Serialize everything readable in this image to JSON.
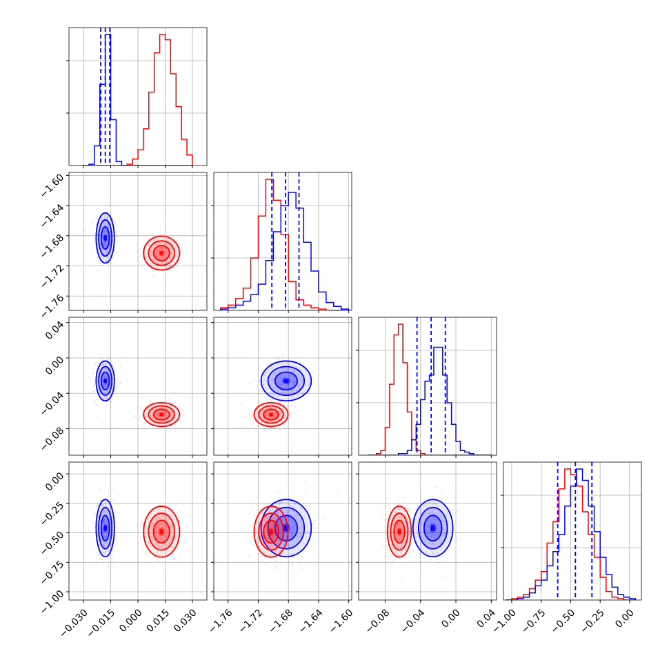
{
  "colors": {
    "blue": "#0000ff",
    "red": "#ff0000",
    "grid": "#b0b0b0",
    "axes": "#000000"
  },
  "chart_data": {
    "type": "corner",
    "grid": true,
    "quantile_lines": {
      "series": "blue",
      "style": "dashed"
    },
    "series": [
      {
        "color": "blue",
        "mean": [
          -0.018,
          -1.683,
          -0.026,
          -0.46
        ],
        "std": [
          0.0028,
          0.0185,
          0.0125,
          0.135
        ]
      },
      {
        "color": "red",
        "mean": [
          0.013,
          -1.703,
          -0.064,
          -0.49
        ],
        "std": [
          0.0055,
          0.0125,
          0.0075,
          0.12
        ]
      }
    ],
    "quantiles_blue": [
      [
        -0.0205,
        -0.018,
        -0.0155
      ],
      [
        -1.702,
        -1.684,
        -1.666
      ],
      [
        -0.044,
        -0.028,
        -0.012
      ],
      [
        -0.61,
        -0.46,
        -0.32
      ]
    ],
    "params": [
      {
        "range": [
          -0.038,
          0.038
        ],
        "ticks": [
          -0.03,
          -0.015,
          0.0,
          0.015,
          0.03
        ],
        "tick_labels": [
          "−0.030",
          "−0.015",
          "0.000",
          "0.015",
          "0.030"
        ]
      },
      {
        "range": [
          -1.779,
          -1.596
        ],
        "ticks": [
          -1.76,
          -1.72,
          -1.68,
          -1.64,
          -1.6
        ],
        "tick_labels": [
          "−1.76",
          "−1.72",
          "−1.68",
          "−1.64",
          "−1.60"
        ]
      },
      {
        "range": [
          -0.11,
          0.046
        ],
        "ticks": [
          -0.08,
          -0.04,
          0.0,
          0.04
        ],
        "tick_labels": [
          "−0.08",
          "−0.04",
          "0.00",
          "0.04"
        ]
      },
      {
        "range": [
          -1.07,
          0.1
        ],
        "ticks": [
          -1.0,
          -0.75,
          -0.5,
          -0.25,
          0.0
        ],
        "tick_labels": [
          "−1.00",
          "−0.75",
          "−0.50",
          "−0.25",
          "0.00"
        ]
      }
    ],
    "panels_1d": [
      {
        "bins": [
          -0.03,
          -0.027,
          -0.024,
          -0.021,
          -0.018,
          -0.015,
          -0.012,
          -0.009,
          -0.006,
          -0.003,
          0.0,
          0.003,
          0.006,
          0.009,
          0.012,
          0.015,
          0.018,
          0.021,
          0.024,
          0.027,
          0.03
        ],
        "blue": [
          0,
          1,
          15,
          62,
          100,
          35,
          3,
          0,
          0,
          0,
          0,
          0,
          0,
          0,
          0,
          0,
          0,
          0,
          0,
          0
        ],
        "red": [
          0,
          0,
          0,
          0,
          0,
          0,
          0,
          0,
          1,
          5,
          12,
          28,
          56,
          86,
          100,
          96,
          70,
          45,
          20,
          8
        ]
      },
      {
        "bins": [
          -1.77,
          -1.76,
          -1.75,
          -1.74,
          -1.73,
          -1.72,
          -1.71,
          -1.7,
          -1.69,
          -1.68,
          -1.67,
          -1.66,
          -1.65,
          -1.64,
          -1.63,
          -1.62,
          -1.61,
          -1.6
        ],
        "blue": [
          1,
          2,
          4,
          7,
          12,
          20,
          38,
          60,
          80,
          90,
          78,
          52,
          30,
          14,
          6,
          3,
          1
        ],
        "red": [
          2,
          4,
          9,
          17,
          40,
          72,
          100,
          84,
          58,
          22,
          8,
          4,
          2,
          1,
          0,
          0,
          0
        ]
      },
      {
        "bins": [
          -0.1,
          -0.095,
          -0.09,
          -0.085,
          -0.08,
          -0.075,
          -0.07,
          -0.065,
          -0.06,
          -0.055,
          -0.05,
          -0.045,
          -0.04,
          -0.035,
          -0.03,
          -0.025,
          -0.02,
          -0.015,
          -0.01,
          -0.005,
          0.0,
          0.005,
          0.01,
          0.015,
          0.02,
          0.025,
          0.03,
          0.035,
          0.04
        ],
        "blue": [
          0,
          0,
          0,
          0,
          0,
          0,
          0,
          1,
          1,
          3,
          10,
          20,
          36,
          48,
          52,
          70,
          70,
          52,
          34,
          20,
          9,
          3,
          2,
          1,
          0,
          0,
          0,
          0
        ],
        "red": [
          0,
          0,
          1,
          3,
          18,
          46,
          78,
          85,
          60,
          28,
          10,
          3,
          1,
          0,
          0,
          0,
          0,
          0,
          0,
          0,
          0,
          0,
          0,
          0,
          0,
          0,
          0,
          0
        ]
      },
      {
        "bins": [
          -1.05,
          -1.0,
          -0.95,
          -0.9,
          -0.85,
          -0.8,
          -0.75,
          -0.7,
          -0.65,
          -0.6,
          -0.55,
          -0.5,
          -0.45,
          -0.4,
          -0.35,
          -0.3,
          -0.25,
          -0.2,
          -0.15,
          -0.1,
          -0.05,
          0.0,
          0.05
        ],
        "blue": [
          0,
          0,
          1,
          2,
          5,
          10,
          14,
          24,
          34,
          46,
          66,
          80,
          92,
          84,
          66,
          48,
          30,
          18,
          9,
          4,
          2,
          1
        ],
        "red": [
          0,
          1,
          2,
          4,
          8,
          14,
          20,
          40,
          55,
          78,
          92,
          88,
          80,
          62,
          46,
          30,
          16,
          6,
          2,
          1,
          0,
          0
        ]
      }
    ]
  }
}
